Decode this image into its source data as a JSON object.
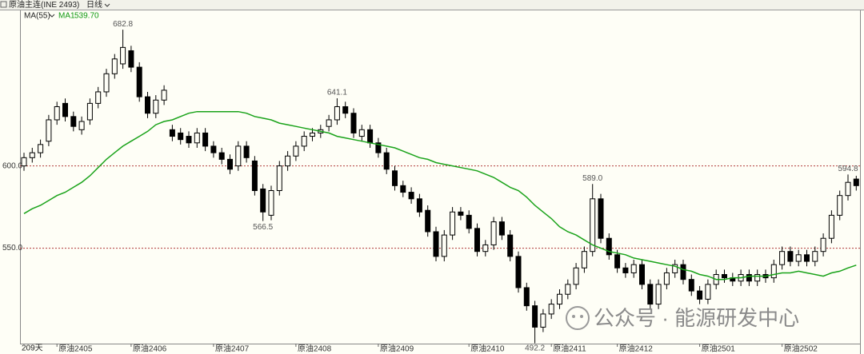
{
  "chart_data": {
    "type": "candlestick",
    "title": "原油主连(INE 2493)",
    "period": "日线",
    "indicator": "MA(55)",
    "days_label": "209天",
    "watermark": "公众号 · 能源研发中心",
    "ylim": [
      492,
      695
    ],
    "yticks": [
      {
        "value": 600,
        "label": "600.0"
      },
      {
        "value": 550,
        "label": "550.0"
      }
    ],
    "grid": true,
    "up_color": "#fefef6",
    "down_color": "#000000",
    "categories": [
      null,
      null,
      null,
      null,
      "原油2405",
      null,
      null,
      null,
      null,
      null,
      null,
      null,
      null,
      "原油2406",
      null,
      null,
      null,
      null,
      null,
      null,
      null,
      null,
      null,
      "原油2407",
      null,
      null,
      null,
      null,
      null,
      null,
      null,
      null,
      null,
      "原油2408",
      null,
      null,
      null,
      null,
      null,
      null,
      null,
      null,
      null,
      "原油2409",
      null,
      null,
      null,
      null,
      null,
      null,
      null,
      null,
      null,
      null,
      "原油2410",
      null,
      null,
      null,
      null,
      null,
      null,
      null,
      null,
      null,
      "原油2411",
      null,
      null,
      null,
      null,
      null,
      null,
      null,
      "原油2412",
      null,
      null,
      null,
      null,
      null,
      null,
      null,
      null,
      null,
      "原油2501",
      null,
      null,
      null,
      null,
      null,
      null,
      null,
      null,
      null,
      "原油2502",
      null,
      null,
      null,
      null,
      null,
      null,
      null,
      null,
      null
    ],
    "open": [
      600,
      605,
      608,
      615,
      628,
      638,
      630,
      622,
      628,
      638,
      645,
      656,
      662,
      670,
      660,
      642,
      632,
      640,
      622,
      620,
      618,
      614,
      620,
      612,
      608,
      604,
      600,
      612,
      603,
      586,
      570,
      585,
      600,
      606,
      612,
      618,
      620,
      624,
      628,
      636,
      632,
      618,
      622,
      614,
      608,
      597,
      588,
      584,
      580,
      573,
      560,
      545,
      558,
      572,
      570,
      562,
      548,
      552,
      566,
      558,
      545,
      526,
      515,
      502,
      510,
      516,
      522,
      528,
      538,
      548,
      580,
      556,
      546,
      538,
      535,
      540,
      528,
      516,
      528,
      535,
      540,
      531,
      524,
      519,
      528,
      534,
      532,
      530,
      534,
      530,
      534,
      532,
      540,
      548,
      542,
      546,
      542,
      548,
      556,
      570,
      582,
      592
    ],
    "high": [
      608,
      611,
      616,
      631,
      639,
      641,
      633,
      630,
      641,
      648,
      659,
      668,
      682.8,
      673,
      663,
      645,
      643,
      649,
      625,
      623,
      621,
      623,
      623,
      615,
      611,
      607,
      615,
      615,
      606,
      589,
      588,
      603,
      609,
      615,
      621,
      623,
      625,
      631,
      641.1,
      639,
      635,
      625,
      625,
      617,
      611,
      600,
      591,
      587,
      583,
      576,
      563,
      561,
      575,
      575,
      573,
      565,
      555,
      569,
      569,
      561,
      548,
      529,
      518,
      513,
      519,
      525,
      531,
      541,
      551,
      589.0,
      583,
      559,
      549,
      541,
      543,
      543,
      531,
      531,
      538,
      543,
      543,
      534,
      527,
      531,
      537,
      537,
      535,
      537,
      537,
      537,
      537,
      543,
      551,
      551,
      549,
      549,
      551,
      559,
      573,
      585,
      594.8,
      594
    ],
    "low": [
      597,
      602,
      605,
      612,
      625,
      627,
      621,
      619,
      625,
      635,
      642,
      653,
      659,
      657,
      639,
      629,
      629,
      637,
      615,
      613,
      611,
      611,
      609,
      605,
      601,
      595,
      597,
      602,
      582,
      566.5,
      567,
      582,
      597,
      603,
      609,
      615,
      617,
      621,
      625,
      629,
      617,
      615,
      611,
      605,
      595,
      585,
      581,
      577,
      569,
      557,
      542,
      542,
      555,
      567,
      559,
      545,
      545,
      549,
      555,
      542,
      523,
      512,
      492.2,
      499,
      507,
      513,
      519,
      525,
      535,
      545,
      553,
      543,
      535,
      532,
      532,
      525,
      513,
      513,
      525,
      532,
      528,
      521,
      516,
      516,
      525,
      529,
      527,
      527,
      527,
      527,
      529,
      529,
      537,
      539,
      539,
      539,
      539,
      545,
      553,
      567,
      579,
      585
    ],
    "close": [
      605,
      608,
      613,
      628,
      636,
      630,
      624,
      627,
      638,
      645,
      656,
      665,
      672,
      660,
      642,
      632,
      640,
      646,
      618,
      616,
      614,
      620,
      612,
      608,
      604,
      598,
      612,
      605,
      585,
      572,
      585,
      600,
      606,
      612,
      618,
      620,
      622,
      628,
      636,
      632,
      620,
      622,
      614,
      608,
      598,
      588,
      584,
      580,
      572,
      560,
      545,
      558,
      572,
      570,
      562,
      548,
      552,
      566,
      558,
      545,
      526,
      515,
      502,
      510,
      516,
      522,
      528,
      538,
      548,
      580,
      556,
      546,
      538,
      535,
      540,
      528,
      516,
      528,
      535,
      540,
      531,
      524,
      519,
      528,
      534,
      532,
      530,
      534,
      530,
      534,
      532,
      540,
      548,
      542,
      546,
      542,
      548,
      556,
      570,
      582,
      590,
      588
    ],
    "high_labels": [
      null,
      null,
      null,
      null,
      null,
      null,
      null,
      null,
      null,
      null,
      null,
      null,
      "682.8",
      null,
      null,
      null,
      null,
      null,
      null,
      null,
      null,
      null,
      null,
      null,
      null,
      null,
      null,
      null,
      null,
      null,
      null,
      null,
      null,
      null,
      null,
      null,
      null,
      null,
      "641.1",
      null,
      null,
      null,
      null,
      null,
      null,
      null,
      null,
      null,
      null,
      null,
      null,
      null,
      null,
      null,
      null,
      null,
      null,
      null,
      null,
      null,
      null,
      null,
      null,
      null,
      null,
      null,
      null,
      null,
      null,
      "589.0",
      null,
      null,
      null,
      null,
      null,
      null,
      null,
      null,
      null,
      null,
      null,
      null,
      null,
      null,
      null,
      null,
      null,
      null,
      null,
      null,
      null,
      null,
      null,
      null,
      null,
      null,
      null,
      null,
      null,
      null,
      "594.8",
      null
    ],
    "low_labels": [
      null,
      null,
      null,
      null,
      null,
      null,
      null,
      null,
      null,
      null,
      null,
      null,
      null,
      null,
      null,
      null,
      null,
      null,
      null,
      null,
      null,
      null,
      null,
      null,
      null,
      null,
      null,
      null,
      null,
      "566.5",
      null,
      null,
      null,
      null,
      null,
      null,
      null,
      null,
      null,
      null,
      null,
      null,
      null,
      null,
      null,
      null,
      null,
      null,
      null,
      null,
      null,
      null,
      null,
      null,
      null,
      null,
      null,
      null,
      null,
      null,
      null,
      null,
      "492.2",
      null,
      null,
      null,
      null,
      null,
      null,
      null,
      null,
      null,
      null,
      null,
      null,
      null,
      null,
      null,
      null,
      null,
      null,
      null,
      null,
      null,
      null,
      null,
      null,
      null,
      null,
      null,
      null,
      null,
      null,
      null,
      null,
      null,
      null,
      null,
      null,
      null,
      null,
      null
    ],
    "series": [
      {
        "name": "MA1",
        "color": "#1aa31a",
        "values": [
          571,
          574,
          576,
          579,
          582,
          584,
          587,
          590,
          594,
          599,
          604,
          608,
          612,
          615,
          618,
          621,
          625,
          627,
          628,
          630,
          632,
          633,
          633,
          633,
          633,
          633,
          633,
          632,
          630,
          629,
          628,
          626,
          625,
          624,
          623,
          622,
          621,
          620,
          618,
          617,
          616,
          615,
          614,
          613,
          612,
          611,
          609,
          607,
          605,
          604,
          602,
          601,
          600,
          599,
          598,
          597,
          595,
          593,
          590,
          587,
          585,
          581,
          576,
          572,
          568,
          563,
          560,
          558,
          555,
          552,
          550,
          548,
          547,
          546,
          544,
          543,
          542,
          541,
          540,
          539,
          537,
          536,
          534,
          533,
          531,
          531,
          532,
          532,
          533,
          533,
          533,
          534,
          535,
          535,
          536,
          535,
          534,
          533,
          535,
          536,
          538,
          539.7
        ],
        "value_labels": [
          null,
          null,
          null,
          null,
          null,
          null,
          null,
          null,
          null,
          null,
          null,
          null,
          null,
          null,
          null,
          null,
          null,
          null,
          null,
          null,
          null,
          null,
          null,
          null,
          null,
          null,
          null,
          null,
          null,
          null,
          null,
          null,
          null,
          null,
          null,
          null,
          null,
          null,
          null,
          null,
          null,
          null,
          null,
          null,
          null,
          null,
          null,
          null,
          null,
          null,
          null,
          null,
          null,
          null,
          null,
          null,
          null,
          null,
          null,
          null,
          null,
          null,
          null,
          null,
          null,
          null,
          null,
          null,
          null,
          null,
          null,
          null,
          null,
          null,
          null,
          null,
          null,
          null,
          null,
          null,
          null,
          null,
          null,
          null,
          null,
          null,
          null,
          null,
          null,
          null,
          null,
          null,
          null,
          null,
          null,
          null,
          null,
          null,
          null,
          null,
          null,
          "539.70"
        ]
      }
    ]
  }
}
